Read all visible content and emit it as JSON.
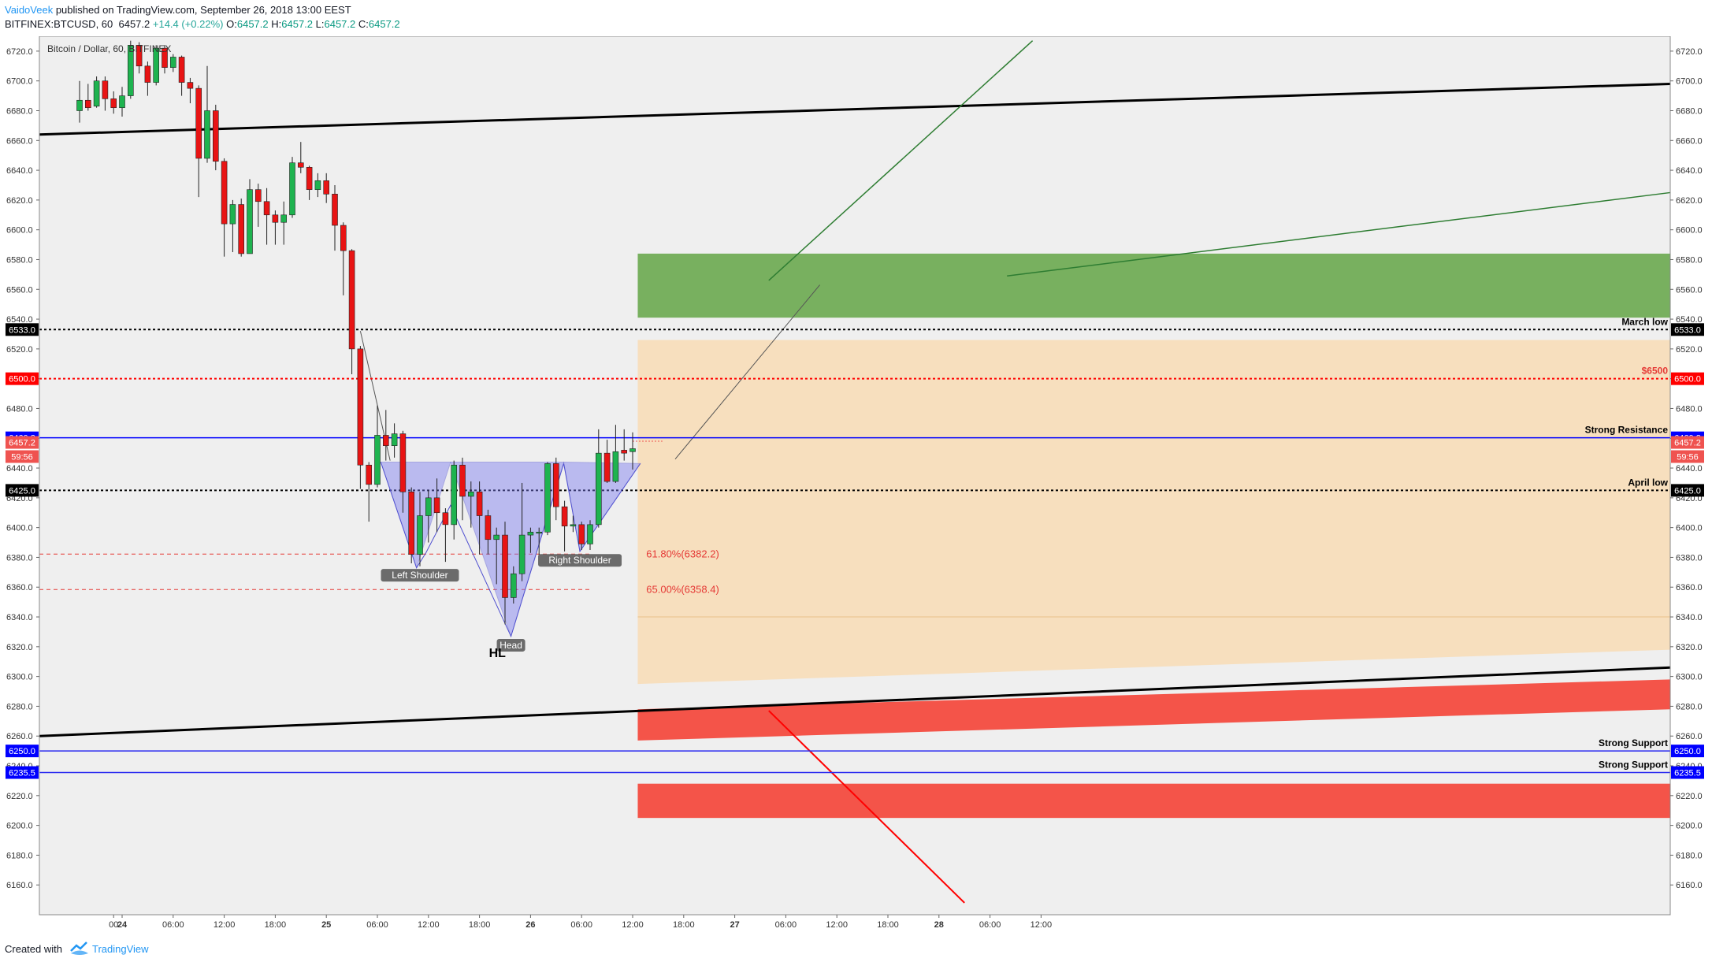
{
  "header": {
    "author": "VaidoVeek",
    "published": "published on TradingView.com, September 26, 2018 13:00 EEST",
    "symbol": "BITFINEX:BTCUSD, 60",
    "last": "6457.2",
    "change": "+14.4 (+0.22%)",
    "o_label": "O:",
    "o_val": "6457.2",
    "h_label": "H:",
    "h_val": "6457.2",
    "l_label": "L:",
    "l_val": "6457.2",
    "c_label": "C:",
    "c_val": "6457.2"
  },
  "footer": {
    "created_with": "Created with",
    "brand": "TradingView"
  },
  "chart_data": {
    "type": "candlestick",
    "title": "Bitcoin / Dollar, 60, BITFINEX",
    "ylim": [
      6140,
      6730
    ],
    "y_ticks": [
      6160,
      6180,
      6200,
      6220,
      6240,
      6260,
      6280,
      6300,
      6320,
      6340,
      6360,
      6380,
      6400,
      6420,
      6440,
      6460,
      6480,
      6500,
      6520,
      6540,
      6560,
      6580,
      6600,
      6620,
      6640,
      6660,
      6680,
      6700,
      6720
    ],
    "x_labels": [
      {
        "t": -1,
        "label": "00"
      },
      {
        "t": 0,
        "label": "24",
        "bold": true
      },
      {
        "t": 6,
        "label": "06:00"
      },
      {
        "t": 12,
        "label": "12:00"
      },
      {
        "t": 18,
        "label": "18:00"
      },
      {
        "t": 24,
        "label": "25",
        "bold": true
      },
      {
        "t": 30,
        "label": "06:00"
      },
      {
        "t": 36,
        "label": "12:00"
      },
      {
        "t": 42,
        "label": "18:00"
      },
      {
        "t": 48,
        "label": "26",
        "bold": true
      },
      {
        "t": 54,
        "label": "06:00"
      },
      {
        "t": 60,
        "label": "12:00"
      },
      {
        "t": 66,
        "label": "18:00"
      },
      {
        "t": 72,
        "label": "27",
        "bold": true
      },
      {
        "t": 78,
        "label": "06:00"
      },
      {
        "t": 84,
        "label": "12:00"
      },
      {
        "t": 90,
        "label": "18:00"
      },
      {
        "t": 96,
        "label": "28",
        "bold": true
      },
      {
        "t": 102,
        "label": "06:00"
      },
      {
        "t": 108,
        "label": "12:00"
      }
    ],
    "candles": [
      [
        -5,
        6680,
        6687,
        6700,
        6672
      ],
      [
        -4,
        6687,
        6682,
        6698,
        6680
      ],
      [
        -3,
        6683,
        6700,
        6703,
        6682
      ],
      [
        -2,
        6700,
        6688,
        6703,
        6680
      ],
      [
        -1,
        6688,
        6682,
        6693,
        6678
      ],
      [
        0,
        6682,
        6690,
        6696,
        6676
      ],
      [
        1,
        6690,
        6724,
        6727,
        6688
      ],
      [
        2,
        6724,
        6710,
        6726,
        6705
      ],
      [
        3,
        6710,
        6699,
        6713,
        6690
      ],
      [
        4,
        6699,
        6722,
        6724,
        6697
      ],
      [
        5,
        6722,
        6709,
        6724,
        6705
      ],
      [
        6,
        6709,
        6716,
        6718,
        6706
      ],
      [
        7,
        6716,
        6699,
        6717,
        6690
      ],
      [
        8,
        6699,
        6695,
        6702,
        6685
      ],
      [
        9,
        6695,
        6648,
        6697,
        6622
      ],
      [
        10,
        6648,
        6680,
        6710,
        6645
      ],
      [
        11,
        6680,
        6646,
        6684,
        6640
      ],
      [
        12,
        6646,
        6604,
        6648,
        6582
      ],
      [
        13,
        6604,
        6617,
        6620,
        6585
      ],
      [
        14,
        6617,
        6584,
        6621,
        6582
      ],
      [
        15,
        6584,
        6627,
        6634,
        6584
      ],
      [
        16,
        6627,
        6619,
        6631,
        6602
      ],
      [
        17,
        6619,
        6610,
        6628,
        6590
      ],
      [
        18,
        6610,
        6605,
        6613,
        6590
      ],
      [
        19,
        6605,
        6610,
        6619,
        6590
      ],
      [
        20,
        6610,
        6645,
        6649,
        6608
      ],
      [
        21,
        6645,
        6642,
        6659,
        6638
      ],
      [
        22,
        6642,
        6627,
        6643,
        6620
      ],
      [
        23,
        6627,
        6633,
        6638,
        6622
      ],
      [
        24,
        6633,
        6624,
        6638,
        6618
      ],
      [
        25,
        6624,
        6603,
        6630,
        6586
      ],
      [
        26,
        6603,
        6586,
        6605,
        6556
      ],
      [
        27,
        6586,
        6520,
        6587,
        6503
      ],
      [
        28,
        6520,
        6442,
        6522,
        6426
      ],
      [
        29,
        6442,
        6429,
        6444,
        6404
      ],
      [
        30,
        6429,
        6462,
        6482,
        6427
      ],
      [
        31,
        6462,
        6455,
        6479,
        6445
      ],
      [
        32,
        6455,
        6463,
        6470,
        6447
      ],
      [
        33,
        6463,
        6424,
        6465,
        6410
      ],
      [
        34,
        6424,
        6382,
        6427,
        6376
      ],
      [
        35,
        6382,
        6408,
        6424,
        6374
      ],
      [
        36,
        6408,
        6420,
        6425,
        6390
      ],
      [
        37,
        6420,
        6410,
        6433,
        6397
      ],
      [
        38,
        6410,
        6402,
        6413,
        6377
      ],
      [
        39,
        6402,
        6442,
        6445,
        6392
      ],
      [
        40,
        6442,
        6421,
        6447,
        6405
      ],
      [
        41,
        6421,
        6424,
        6431,
        6400
      ],
      [
        42,
        6424,
        6408,
        6431,
        6382
      ],
      [
        43,
        6408,
        6392,
        6412,
        6382
      ],
      [
        44,
        6392,
        6395,
        6400,
        6362
      ],
      [
        45,
        6395,
        6353,
        6404,
        6335
      ],
      [
        46,
        6353,
        6369,
        6374,
        6349
      ],
      [
        47,
        6369,
        6395,
        6430,
        6364
      ],
      [
        48,
        6395,
        6397,
        6400,
        6383
      ],
      [
        49,
        6397,
        6397,
        6400,
        6380
      ],
      [
        50,
        6397,
        6443,
        6444,
        6395
      ],
      [
        51,
        6443,
        6414,
        6447,
        6405
      ],
      [
        52,
        6414,
        6401,
        6418,
        6384
      ],
      [
        53,
        6401,
        6402,
        6408,
        6397
      ],
      [
        54,
        6402,
        6389,
        6404,
        6385
      ],
      [
        55,
        6389,
        6402,
        6405,
        6385
      ],
      [
        56,
        6402,
        6450,
        6466,
        6400
      ],
      [
        57,
        6450,
        6431,
        6459,
        6430
      ],
      [
        58,
        6431,
        6451,
        6469,
        6430
      ],
      [
        59,
        6452,
        6450,
        6466,
        6445
      ],
      [
        60,
        6451,
        6453,
        6464,
        6439
      ]
    ],
    "horizontal_levels": [
      {
        "name": "March low",
        "value": 6533.0,
        "color": "#000000",
        "style": "dotted"
      },
      {
        "name": "$6500",
        "value": 6500.0,
        "color": "#ff0000",
        "style": "dotted"
      },
      {
        "name": "Strong Resistance",
        "value": 6460.3,
        "color": "#0000ff",
        "style": "solid"
      },
      {
        "name": "April low",
        "value": 6425.0,
        "color": "#000000",
        "style": "dotted"
      },
      {
        "name": "Strong Support",
        "value": 6250.0,
        "color": "#2a2af0",
        "style": "solid"
      },
      {
        "name": "Strong Support",
        "value": 6235.5,
        "color": "#2a2af0",
        "style": "solid"
      }
    ],
    "fib_levels": [
      {
        "label": "61.80%(6382.2)",
        "value": 6382.2
      },
      {
        "label": "65.00%(6358.4)",
        "value": 6358.4
      }
    ],
    "price_tags": [
      {
        "value": 6533.0,
        "text": "6533.0",
        "bg": "#000000"
      },
      {
        "value": 6500.0,
        "text": "6500.0",
        "bg": "#ff0000"
      },
      {
        "value": 6460.3,
        "text": "6460.3",
        "bg": "#0000ff"
      },
      {
        "value": 6425.0,
        "text": "6425.0",
        "bg": "#000000"
      },
      {
        "value": 6250.0,
        "text": "6250.0",
        "bg": "#0000ff"
      },
      {
        "value": 6235.5,
        "text": "6235.5",
        "bg": "#0000ff"
      }
    ],
    "current_price": {
      "value": 6457.2,
      "text": "6457.2",
      "countdown": "59:56",
      "bg": "#ef5350"
    },
    "pattern_labels": [
      {
        "text": "Left Shoulder",
        "t": 35,
        "value": 6368
      },
      {
        "text": "Head",
        "t": 45.7,
        "value": 6321
      },
      {
        "text": "Right Shoulder",
        "t": 53.8,
        "value": 6378
      }
    ],
    "annotation": {
      "text": "HL",
      "t": 44.1,
      "value": 6313
    }
  },
  "colors": {
    "up": "#1eb34f",
    "down": "#e81414",
    "background": "#efefef"
  }
}
